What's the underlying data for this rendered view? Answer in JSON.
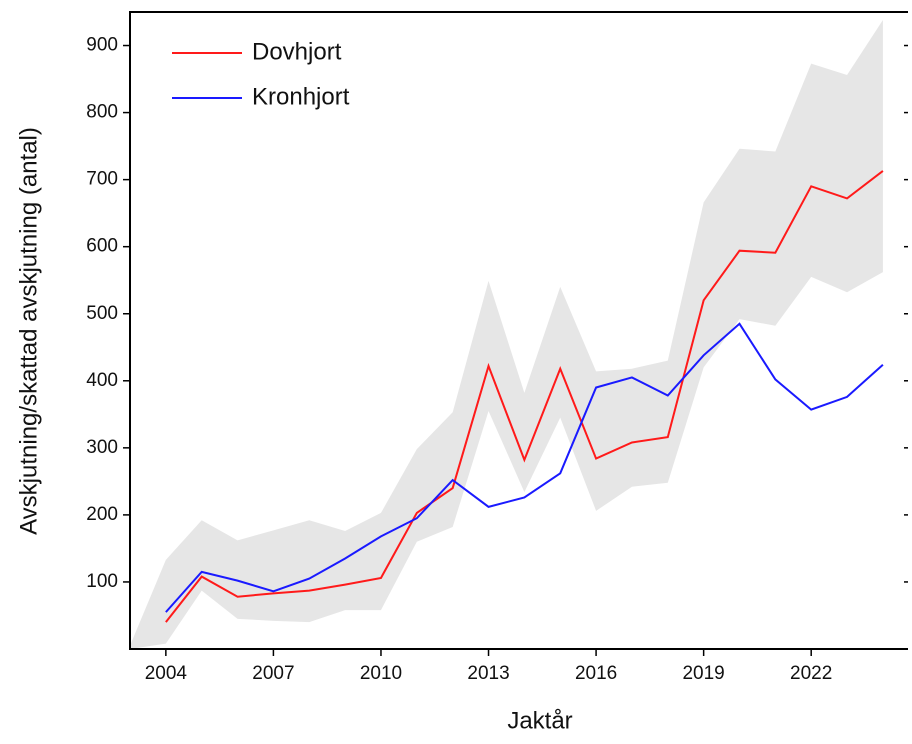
{
  "chart_data": {
    "type": "line",
    "xlabel": "Jaktår",
    "ylabel": "Avskjutning/skattad avskjutning (antal)",
    "x": [
      2003,
      2004,
      2005,
      2006,
      2007,
      2008,
      2009,
      2010,
      2011,
      2012,
      2013,
      2014,
      2015,
      2016,
      2017,
      2018,
      2019,
      2020,
      2021,
      2022,
      2023,
      2024
    ],
    "series": [
      {
        "name": "Dovhjort",
        "color": "#ff1a1a",
        "values": [
          null,
          40,
          108,
          78,
          83,
          87,
          96,
          106,
          203,
          240,
          422,
          282,
          418,
          284,
          308,
          316,
          520,
          594,
          591,
          690,
          672,
          713
        ]
      },
      {
        "name": "Kronhjort",
        "color": "#1a1aff",
        "values": [
          null,
          55,
          115,
          102,
          86,
          105,
          135,
          168,
          195,
          252,
          212,
          226,
          262,
          390,
          405,
          378,
          438,
          485,
          402,
          357,
          376,
          424
        ]
      }
    ],
    "band": {
      "color": "#e6e6e6",
      "upper": [
        5,
        133,
        192,
        162,
        177,
        192,
        176,
        203,
        298,
        353,
        549,
        382,
        540,
        414,
        418,
        430,
        666,
        746,
        742,
        873,
        856,
        938
      ],
      "lower": [
        0,
        8,
        87,
        45,
        42,
        40,
        58,
        58,
        160,
        182,
        355,
        234,
        345,
        206,
        242,
        248,
        420,
        492,
        482,
        555,
        532,
        562
      ]
    },
    "xlim": [
      2003,
      2024.7
    ],
    "ylim": [
      0,
      950
    ],
    "xticks": [
      2004,
      2007,
      2010,
      2013,
      2016,
      2019,
      2022
    ],
    "yticks": [
      100,
      200,
      300,
      400,
      500,
      600,
      700,
      800,
      900
    ],
    "legend": "upper left"
  }
}
